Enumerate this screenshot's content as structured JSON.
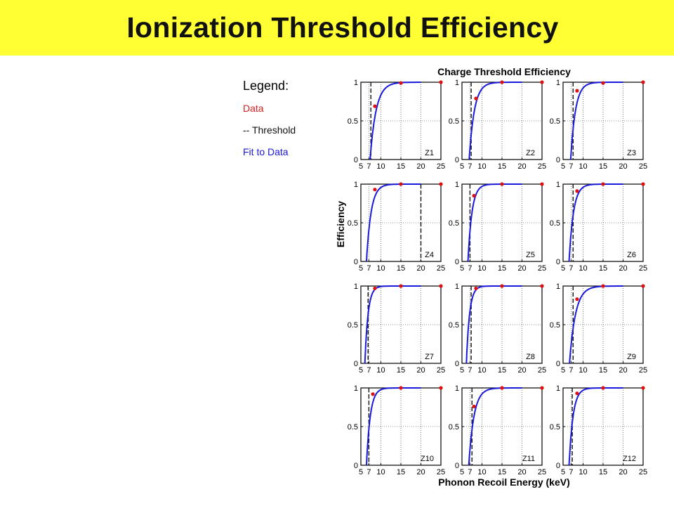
{
  "slide": {
    "title": "Ionization Threshold Efficiency"
  },
  "legend": {
    "heading": "Legend:",
    "items": [
      {
        "label": "Data",
        "color": "#d42020"
      },
      {
        "label": "-- Threshold",
        "color": "#111111"
      },
      {
        "label": "Fit to Data",
        "color": "#1a1acc"
      }
    ]
  },
  "colors": {
    "banner": "#ffff33",
    "data": "#e01010",
    "fit": "#1a1add",
    "threshold": "#111111"
  },
  "chart_data": {
    "type": "line",
    "title": "Charge Threshold Efficiency",
    "xlabel": "Phonon Recoil Energy (keV)",
    "ylabel": "Efficiency",
    "xlim": [
      5,
      25
    ],
    "ylim": [
      0,
      1
    ],
    "xticks": [
      5,
      7,
      10,
      15,
      20,
      25
    ],
    "yticks": [
      0,
      0.5,
      1
    ],
    "ytick_labels": [
      "0",
      "0.5",
      "1"
    ],
    "grid": true,
    "layout": "4x3 grid of panels",
    "panels": [
      {
        "label": "Z1",
        "threshold_keV": 7.5,
        "fit": {
          "onset_keV": 7.3,
          "rise_keV": 1.5
        },
        "data_x": [
          8.5,
          15,
          25
        ],
        "data_y": [
          0.69,
          0.99,
          1.0
        ]
      },
      {
        "label": "Z2",
        "threshold_keV": 7.3,
        "fit": {
          "onset_keV": 6.8,
          "rise_keV": 1.3
        },
        "data_x": [
          8.5,
          15,
          25
        ],
        "data_y": [
          0.79,
          1.0,
          1.0
        ]
      },
      {
        "label": "Z3",
        "threshold_keV": 7.5,
        "fit": {
          "onset_keV": 6.9,
          "rise_keV": 1.2
        },
        "data_x": [
          8.5,
          15,
          25
        ],
        "data_y": [
          0.89,
          0.99,
          1.0
        ]
      },
      {
        "label": "Z4",
        "threshold_keV": 20.0,
        "fit": {
          "onset_keV": 6.4,
          "rise_keV": 1.15
        },
        "data_x": [
          8.5,
          15,
          25
        ],
        "data_y": [
          0.93,
          1.0,
          1.0
        ]
      },
      {
        "label": "Z5",
        "threshold_keV": 7.0,
        "fit": {
          "onset_keV": 6.5,
          "rise_keV": 1.0
        },
        "data_x": [
          8.0,
          15,
          25
        ],
        "data_y": [
          0.85,
          1.0,
          1.0
        ]
      },
      {
        "label": "Z6",
        "threshold_keV": 7.5,
        "fit": {
          "onset_keV": 6.5,
          "rise_keV": 1.1
        },
        "data_x": [
          8.5,
          15,
          25
        ],
        "data_y": [
          0.91,
          1.0,
          1.0
        ]
      },
      {
        "label": "Z7",
        "threshold_keV": 6.8,
        "fit": {
          "onset_keV": 6.0,
          "rise_keV": 0.8
        },
        "data_x": [
          8.5,
          15,
          25
        ],
        "data_y": [
          0.97,
          1.0,
          1.0
        ]
      },
      {
        "label": "Z8",
        "threshold_keV": 7.3,
        "fit": {
          "onset_keV": 6.1,
          "rise_keV": 0.8
        },
        "data_x": [
          8.5,
          15,
          25
        ],
        "data_y": [
          0.97,
          1.0,
          1.0
        ]
      },
      {
        "label": "Z9",
        "threshold_keV": 7.5,
        "fit": {
          "onset_keV": 6.6,
          "rise_keV": 1.5
        },
        "data_x": [
          8.5,
          15,
          25
        ],
        "data_y": [
          0.83,
          1.0,
          1.0
        ]
      },
      {
        "label": "Z10",
        "threshold_keV": 7.0,
        "fit": {
          "onset_keV": 6.4,
          "rise_keV": 0.95
        },
        "data_x": [
          8.0,
          15,
          25
        ],
        "data_y": [
          0.92,
          1.0,
          1.0
        ]
      },
      {
        "label": "Z11",
        "threshold_keV": 7.5,
        "fit": {
          "onset_keV": 6.7,
          "rise_keV": 1.3
        },
        "data_x": [
          8.0,
          15,
          25
        ],
        "data_y": [
          0.76,
          1.0,
          1.0
        ]
      },
      {
        "label": "Z12",
        "threshold_keV": 7.3,
        "fit": {
          "onset_keV": 6.5,
          "rise_keV": 1.0
        },
        "data_x": [
          8.5,
          15,
          25
        ],
        "data_y": [
          0.93,
          1.0,
          1.0
        ]
      }
    ]
  }
}
